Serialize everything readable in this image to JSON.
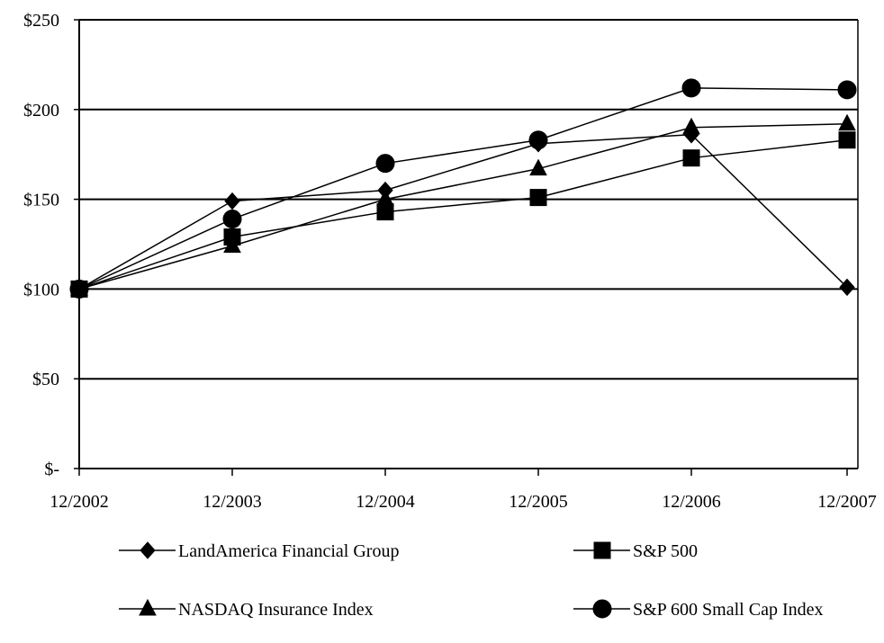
{
  "chart_data": {
    "type": "line",
    "title": "",
    "xlabel": "",
    "ylabel": "",
    "categories": [
      "12/2002",
      "12/2003",
      "12/2004",
      "12/2005",
      "12/2006",
      "12/2007"
    ],
    "ylim": [
      0,
      250
    ],
    "y_ticks": [
      {
        "value": 0,
        "label": "$-"
      },
      {
        "value": 50,
        "label": "$50"
      },
      {
        "value": 100,
        "label": "$100"
      },
      {
        "value": 150,
        "label": "$150"
      },
      {
        "value": 200,
        "label": "$200"
      },
      {
        "value": 250,
        "label": "$250"
      }
    ],
    "grid": "horizontal",
    "legend_position": "bottom",
    "series": [
      {
        "name": "LandAmerica Financial Group",
        "marker": "diamond",
        "values": [
          100,
          149,
          155,
          181,
          186,
          101
        ]
      },
      {
        "name": "S&P 500",
        "marker": "square",
        "values": [
          100,
          129,
          143,
          151,
          173,
          183
        ]
      },
      {
        "name": "NASDAQ Insurance Index",
        "marker": "triangle",
        "values": [
          100,
          124,
          150,
          167,
          190,
          192
        ]
      },
      {
        "name": "S&P 600 Small Cap Index",
        "marker": "circle",
        "values": [
          100,
          139,
          170,
          183,
          212,
          211
        ]
      }
    ],
    "colors": {
      "line": "#000000",
      "grid": "#000000",
      "background": "#ffffff"
    }
  }
}
